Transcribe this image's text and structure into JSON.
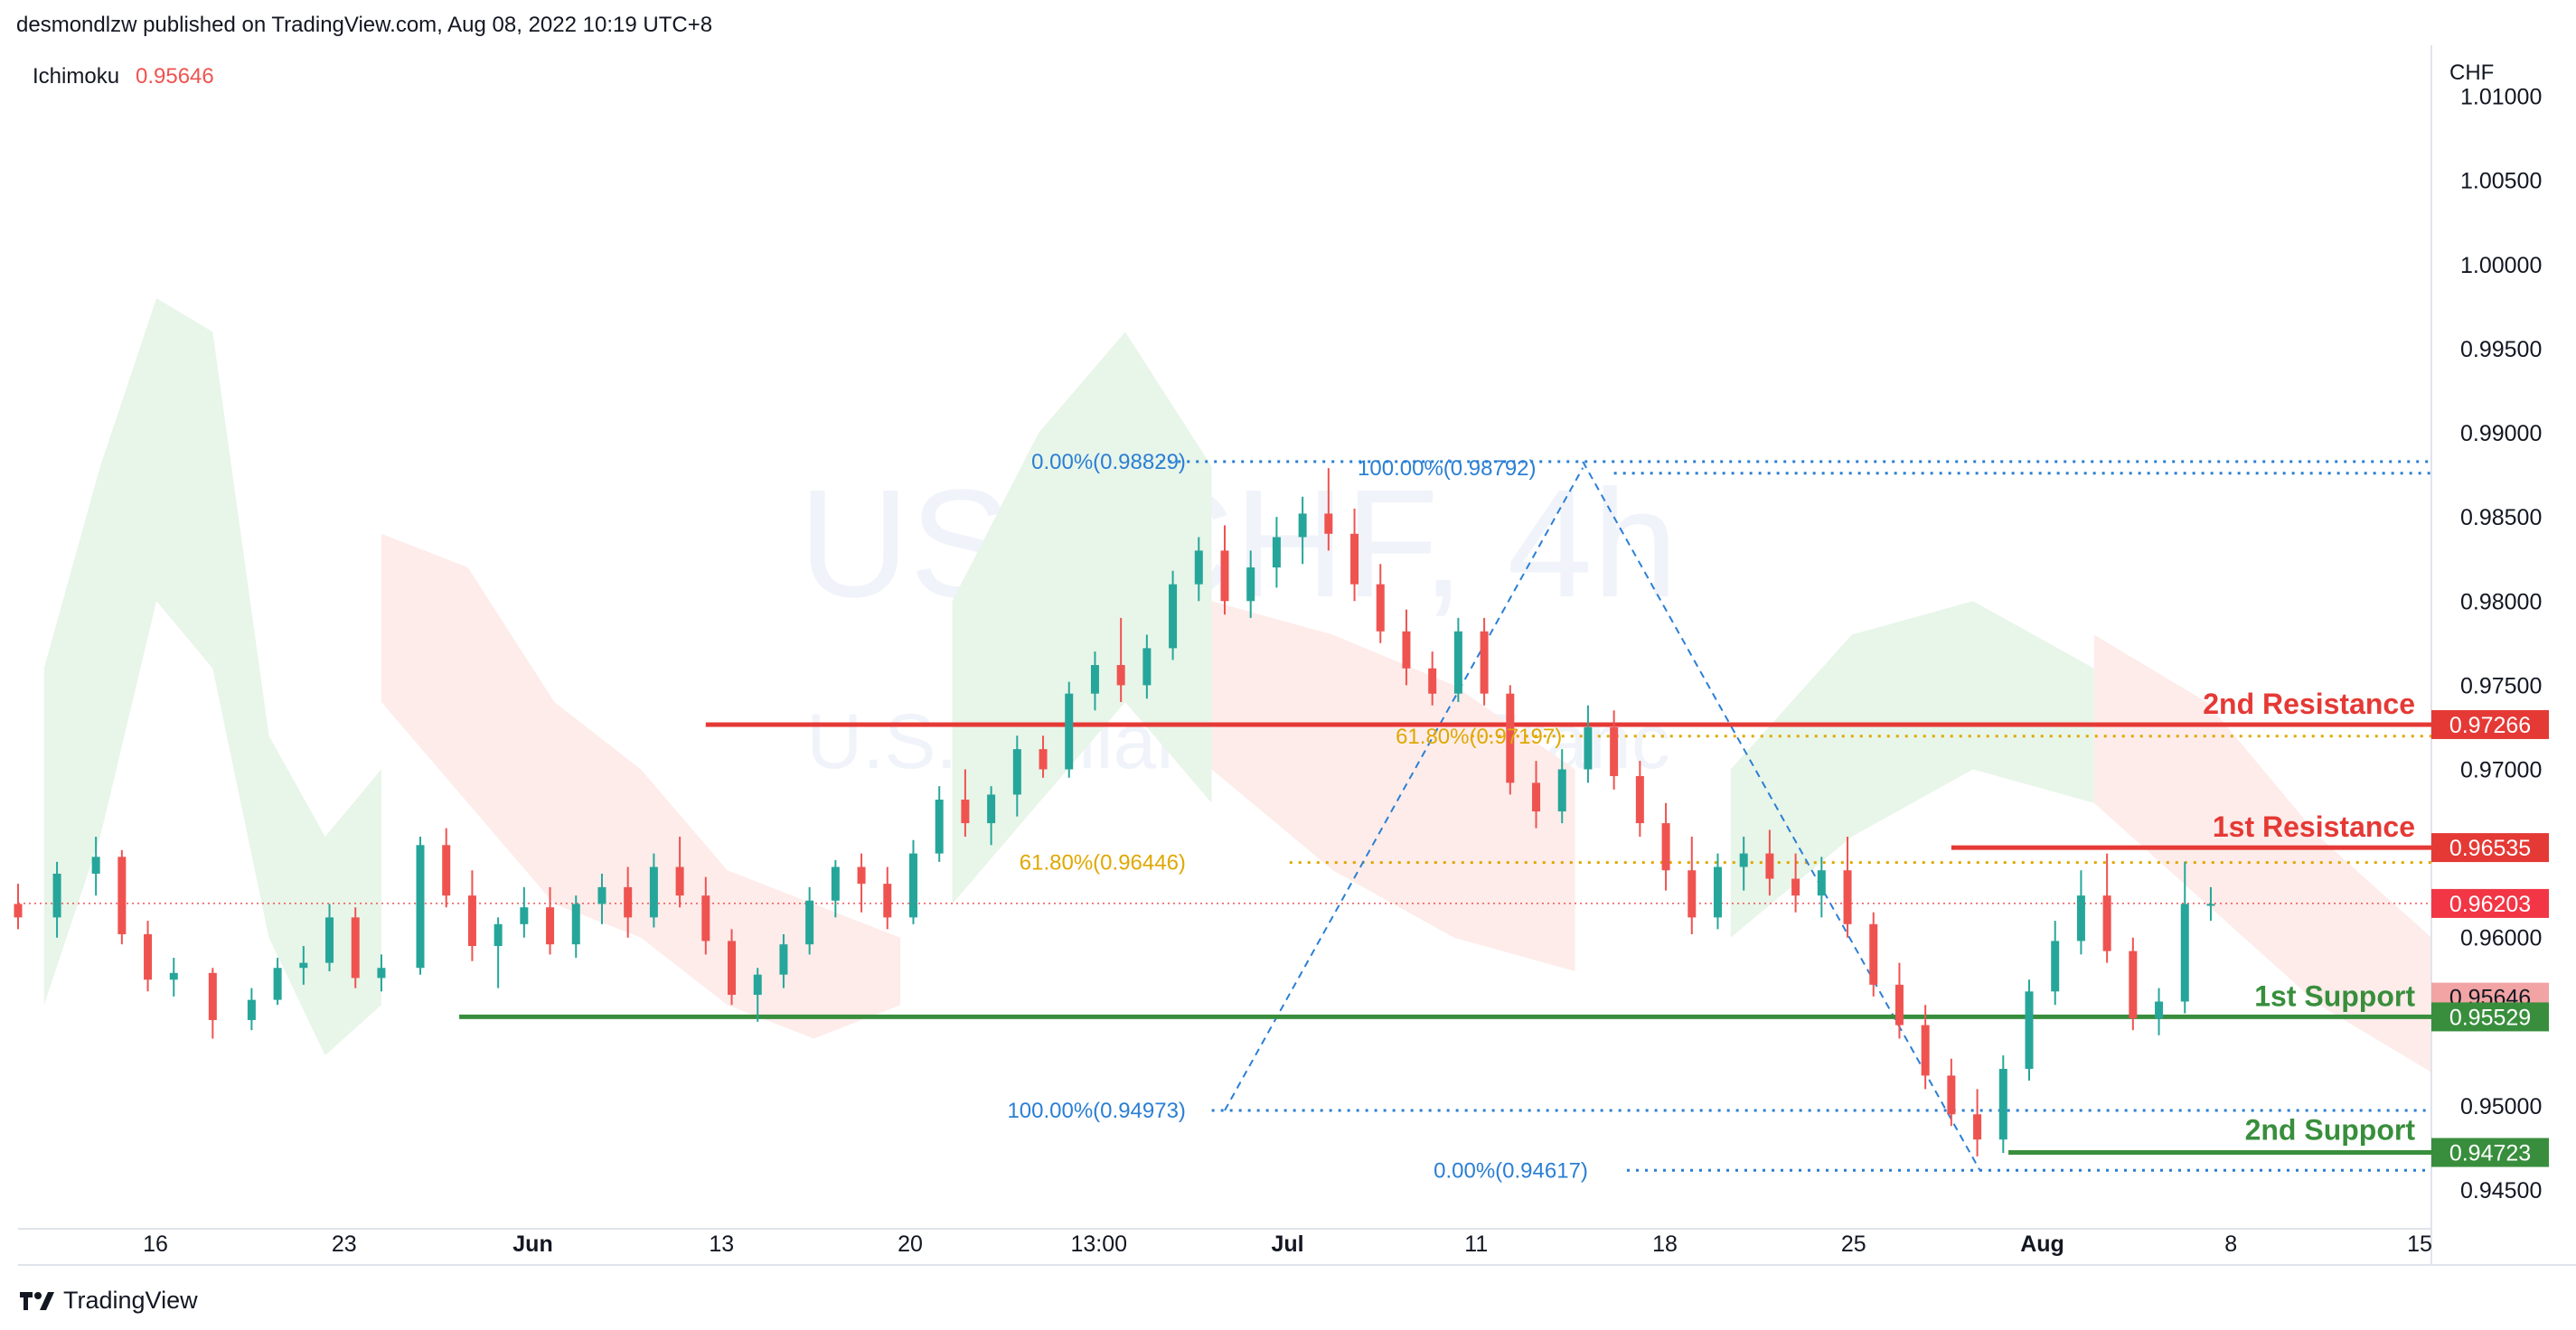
{
  "header": {
    "published_by": "desmondlzw published on TradingView.com, Aug 08, 2022 10:19 UTC+8"
  },
  "indicator": {
    "name": "Ichimoku",
    "value": "0.95646"
  },
  "footer": {
    "brand": "TradingView"
  },
  "colors": {
    "up": "#26a69a",
    "down": "#ef5350",
    "resistance": "#e53935",
    "support": "#388e3c",
    "fib": "#2a7fd4",
    "fib_gold": "#e0a800",
    "cloud_bull": "#e8f5e9",
    "cloud_bear": "#fdecea"
  },
  "chart_data": {
    "type": "candlestick",
    "symbol": "USDCHF",
    "watermark_title": "USDCHF, 4h",
    "watermark_subtitle": "U.S. Dollar / Swiss Franc",
    "currency": "CHF",
    "ylim": [
      0.9435,
      1.0125
    ],
    "y_ticks": [
      "1.01000",
      "1.00500",
      "1.00000",
      "0.99500",
      "0.99000",
      "0.98500",
      "0.98000",
      "0.97500",
      "0.97000",
      "0.96500",
      "0.96000",
      "0.95500",
      "0.95000",
      "0.94500"
    ],
    "x_ticks": [
      "16",
      "23",
      "Jun",
      "13",
      "20",
      "13:00",
      "Jul",
      "11",
      "18",
      "25",
      "Aug",
      "8",
      "15"
    ],
    "current_price": 0.96203,
    "price_labels": [
      {
        "text": "0.97266",
        "value": 0.97266,
        "kind": "resistance"
      },
      {
        "text": "0.96535",
        "value": 0.96535,
        "kind": "resistance"
      },
      {
        "text": "0.96203",
        "value": 0.96203,
        "kind": "last"
      },
      {
        "text": "0.95646",
        "value": 0.95646,
        "kind": "ichimoku"
      },
      {
        "text": "0.95529",
        "value": 0.95529,
        "kind": "support"
      },
      {
        "text": "0.94723",
        "value": 0.94723,
        "kind": "support"
      }
    ],
    "levels": [
      {
        "name": "2nd Resistance",
        "value": 0.97266,
        "kind": "resistance",
        "start_day": 26.5
      },
      {
        "name": "1st Resistance",
        "value": 0.96535,
        "kind": "resistance",
        "start_day": 74.5
      },
      {
        "name": "1st Support",
        "value": 0.95529,
        "kind": "support",
        "start_day": 17
      },
      {
        "name": "2nd Support",
        "value": 0.94723,
        "kind": "support",
        "start_day": 76.7
      }
    ],
    "fib_labels": [
      {
        "text": "0.00%(0.98829)",
        "value": 0.98829,
        "label_day": 45,
        "kind": "blue"
      },
      {
        "text": "100.00%(0.98792)",
        "value": 0.98792,
        "label_day": 58.5,
        "kind": "blue"
      },
      {
        "text": "61.80%(0.97197)",
        "value": 0.97197,
        "label_day": 59.5,
        "kind": "gold"
      },
      {
        "text": "61.80%(0.96446)",
        "value": 0.96446,
        "label_day": 45,
        "kind": "gold"
      },
      {
        "text": "100.00%(0.94973)",
        "value": 0.94973,
        "label_day": 45,
        "kind": "blue"
      },
      {
        "text": "0.00%(0.94617)",
        "value": 0.94617,
        "label_day": 60.5,
        "kind": "blue"
      }
    ],
    "candles": [
      [
        0.962,
        0.9632,
        0.9605,
        0.9612
      ],
      [
        0.9612,
        0.9645,
        0.96,
        0.9638
      ],
      [
        0.9638,
        0.966,
        0.9625,
        0.9648
      ],
      [
        0.9648,
        0.9652,
        0.9596,
        0.9602
      ],
      [
        0.9602,
        0.961,
        0.9568,
        0.9575
      ],
      [
        0.9575,
        0.9588,
        0.9565,
        0.9579
      ],
      [
        0.9579,
        0.9582,
        0.954,
        0.9551
      ],
      [
        0.9551,
        0.957,
        0.9545,
        0.9563
      ],
      [
        0.9563,
        0.9588,
        0.956,
        0.9582
      ],
      [
        0.9582,
        0.9595,
        0.9572,
        0.9585
      ],
      [
        0.9585,
        0.962,
        0.958,
        0.9612
      ],
      [
        0.9612,
        0.9618,
        0.957,
        0.9576
      ],
      [
        0.9576,
        0.959,
        0.9568,
        0.9582
      ],
      [
        0.9582,
        0.966,
        0.9578,
        0.9655
      ],
      [
        0.9655,
        0.9665,
        0.9618,
        0.9625
      ],
      [
        0.9625,
        0.964,
        0.9586,
        0.9595
      ],
      [
        0.9595,
        0.9612,
        0.957,
        0.9608
      ],
      [
        0.9608,
        0.963,
        0.96,
        0.9618
      ],
      [
        0.9618,
        0.963,
        0.959,
        0.9596
      ],
      [
        0.9596,
        0.9625,
        0.9588,
        0.962
      ],
      [
        0.962,
        0.9638,
        0.9608,
        0.963
      ],
      [
        0.963,
        0.9642,
        0.96,
        0.9612
      ],
      [
        0.9612,
        0.965,
        0.9606,
        0.9642
      ],
      [
        0.9642,
        0.966,
        0.9618,
        0.9625
      ],
      [
        0.9625,
        0.9636,
        0.959,
        0.9598
      ],
      [
        0.9598,
        0.9605,
        0.956,
        0.9566
      ],
      [
        0.9566,
        0.9582,
        0.955,
        0.9578
      ],
      [
        0.9578,
        0.9602,
        0.957,
        0.9596
      ],
      [
        0.9596,
        0.963,
        0.959,
        0.9622
      ],
      [
        0.9622,
        0.9646,
        0.9612,
        0.9642
      ],
      [
        0.9642,
        0.965,
        0.9615,
        0.9632
      ],
      [
        0.9632,
        0.9642,
        0.9605,
        0.9612
      ],
      [
        0.9612,
        0.9658,
        0.9608,
        0.965
      ],
      [
        0.965,
        0.969,
        0.9645,
        0.9682
      ],
      [
        0.9682,
        0.97,
        0.966,
        0.9668
      ],
      [
        0.9668,
        0.969,
        0.9655,
        0.9685
      ],
      [
        0.9685,
        0.972,
        0.9672,
        0.9712
      ],
      [
        0.9712,
        0.972,
        0.9695,
        0.97
      ],
      [
        0.97,
        0.9752,
        0.9695,
        0.9745
      ],
      [
        0.9745,
        0.977,
        0.9735,
        0.9762
      ],
      [
        0.9762,
        0.979,
        0.974,
        0.975
      ],
      [
        0.975,
        0.978,
        0.9742,
        0.9772
      ],
      [
        0.9772,
        0.9818,
        0.9765,
        0.981
      ],
      [
        0.981,
        0.9838,
        0.98,
        0.983
      ],
      [
        0.983,
        0.9845,
        0.9792,
        0.98
      ],
      [
        0.98,
        0.983,
        0.979,
        0.982
      ],
      [
        0.982,
        0.985,
        0.9808,
        0.9838
      ],
      [
        0.9838,
        0.9862,
        0.9822,
        0.9852
      ],
      [
        0.9852,
        0.9879,
        0.983,
        0.984
      ],
      [
        0.984,
        0.9855,
        0.98,
        0.981
      ],
      [
        0.981,
        0.9822,
        0.9775,
        0.9782
      ],
      [
        0.9782,
        0.9795,
        0.975,
        0.976
      ],
      [
        0.976,
        0.977,
        0.9738,
        0.9745
      ],
      [
        0.9745,
        0.979,
        0.974,
        0.9782
      ],
      [
        0.9782,
        0.979,
        0.9738,
        0.9745
      ],
      [
        0.9745,
        0.975,
        0.9685,
        0.9692
      ],
      [
        0.9692,
        0.9705,
        0.9665,
        0.9675
      ],
      [
        0.9675,
        0.9712,
        0.9668,
        0.97
      ],
      [
        0.97,
        0.9738,
        0.9692,
        0.9725
      ],
      [
        0.9725,
        0.9735,
        0.9688,
        0.9696
      ],
      [
        0.9696,
        0.9705,
        0.966,
        0.9668
      ],
      [
        0.9668,
        0.968,
        0.9628,
        0.964
      ],
      [
        0.964,
        0.966,
        0.9602,
        0.9612
      ],
      [
        0.9612,
        0.965,
        0.9605,
        0.9642
      ],
      [
        0.9642,
        0.966,
        0.9628,
        0.965
      ],
      [
        0.965,
        0.9664,
        0.9625,
        0.9635
      ],
      [
        0.9635,
        0.965,
        0.9615,
        0.9625
      ],
      [
        0.9625,
        0.9648,
        0.9612,
        0.964
      ],
      [
        0.964,
        0.966,
        0.96,
        0.9608
      ],
      [
        0.9608,
        0.9615,
        0.9565,
        0.9572
      ],
      [
        0.9572,
        0.9585,
        0.954,
        0.9548
      ],
      [
        0.9548,
        0.956,
        0.951,
        0.9518
      ],
      [
        0.9518,
        0.9528,
        0.9488,
        0.9495
      ],
      [
        0.9495,
        0.951,
        0.947,
        0.948
      ],
      [
        0.948,
        0.953,
        0.9472,
        0.9522
      ],
      [
        0.9522,
        0.9575,
        0.9515,
        0.9568
      ],
      [
        0.9568,
        0.961,
        0.956,
        0.9598
      ],
      [
        0.9598,
        0.964,
        0.959,
        0.9625
      ],
      [
        0.9625,
        0.965,
        0.9585,
        0.9592
      ],
      [
        0.9592,
        0.96,
        0.9545,
        0.9552
      ],
      [
        0.9552,
        0.957,
        0.9542,
        0.9562
      ],
      [
        0.9562,
        0.9645,
        0.9555,
        0.962
      ],
      [
        0.962,
        0.963,
        0.961,
        0.962
      ]
    ]
  }
}
